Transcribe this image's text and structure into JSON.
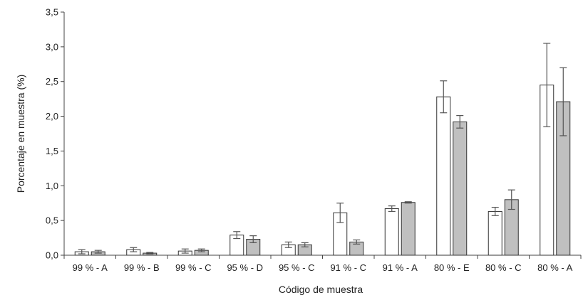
{
  "chart_data": {
    "type": "bar",
    "title": "",
    "xlabel": "Código de muestra",
    "ylabel": "Porcentaje en muestra (%)",
    "ylim": [
      0,
      3.5
    ],
    "yticks": [
      "0,0",
      "0,5",
      "1,0",
      "1,5",
      "2,0",
      "2,5",
      "3,0",
      "3,5"
    ],
    "categories": [
      "99 % - A",
      "99 % - B",
      "99 % - C",
      "95 % - D",
      "95 % - C",
      "91 % - C",
      "91 % - A",
      "80 % - E",
      "80 % - C",
      "80 % - A"
    ],
    "grid": false,
    "legend": "none",
    "series": [
      {
        "color": "#ffffff",
        "values": [
          0.05,
          0.08,
          0.06,
          0.29,
          0.15,
          0.61,
          0.67,
          2.28,
          0.63,
          2.45
        ],
        "errors": [
          0.03,
          0.03,
          0.03,
          0.05,
          0.04,
          0.14,
          0.04,
          0.23,
          0.06,
          0.6
        ]
      },
      {
        "color": "#c0c0c0",
        "values": [
          0.05,
          0.03,
          0.07,
          0.23,
          0.15,
          0.19,
          0.76,
          1.92,
          0.8,
          2.21
        ],
        "errors": [
          0.02,
          0.01,
          0.02,
          0.05,
          0.03,
          0.03,
          0.01,
          0.09,
          0.14,
          0.49
        ]
      }
    ]
  }
}
